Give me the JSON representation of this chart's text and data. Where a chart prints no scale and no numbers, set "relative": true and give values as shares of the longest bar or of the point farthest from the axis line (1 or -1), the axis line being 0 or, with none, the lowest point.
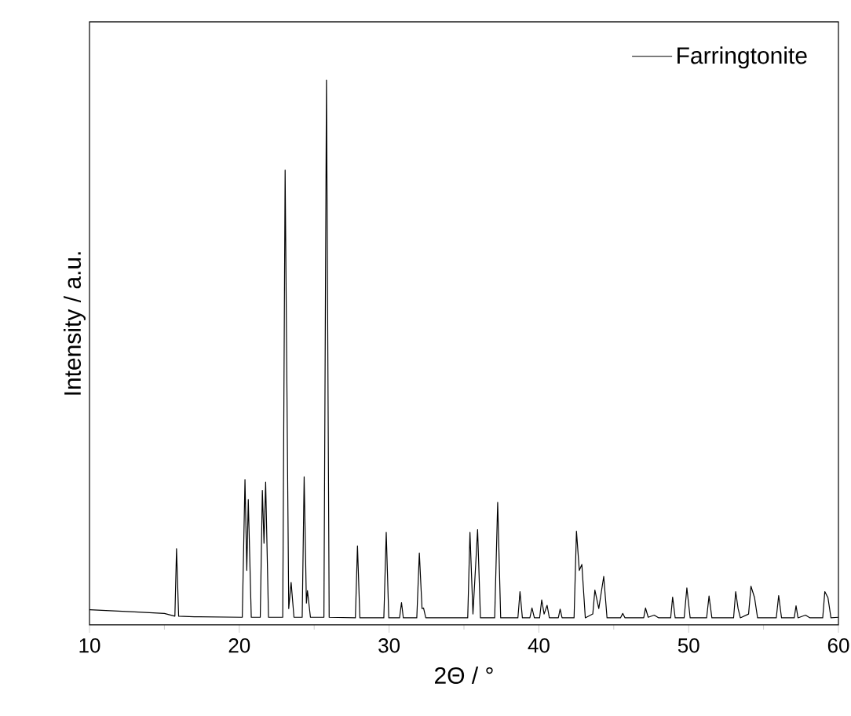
{
  "chart_data": {
    "type": "line",
    "xlabel": "2Θ / °",
    "ylabel": "Intensity / a.u.",
    "relative": true,
    "legend": "top right",
    "xlim": [
      10,
      60
    ],
    "xticks": [
      10,
      {
        "value": 15,
        "label": null
      },
      20,
      {
        "value": 25,
        "label": null
      },
      30,
      {
        "value": 35,
        "label": null
      },
      40,
      {
        "value": 45,
        "label": null
      },
      50,
      {
        "value": 55,
        "label": null
      },
      60
    ],
    "series": [
      {
        "name": "Farringtonite",
        "color": "#000000",
        "x": [
          10,
          13,
          15,
          15.7,
          15.81,
          15.95,
          17,
          20.2,
          20.38,
          20.5,
          20.6,
          20.8,
          21.4,
          21.54,
          21.65,
          21.76,
          21.95,
          22.9,
          23.06,
          23.3,
          23.46,
          23.65,
          24.2,
          24.33,
          24.48,
          24.55,
          24.75,
          25.65,
          25.82,
          26.0,
          27.75,
          27.89,
          28.05,
          29.65,
          29.81,
          29.98,
          30.7,
          30.83,
          30.95,
          31.85,
          32.02,
          32.2,
          32.3,
          32.45,
          35.25,
          35.4,
          35.6,
          35.91,
          36.1,
          37.05,
          37.25,
          37.45,
          38.6,
          38.74,
          38.9,
          39.4,
          39.54,
          39.7,
          40.05,
          40.19,
          40.35,
          40.55,
          40.7,
          41.3,
          41.42,
          41.55,
          42.35,
          42.51,
          42.7,
          42.87,
          43.1,
          43.6,
          43.74,
          44.0,
          44.33,
          44.55,
          45.45,
          45.6,
          45.75,
          47.0,
          47.12,
          47.3,
          47.7,
          48.0,
          48.8,
          48.93,
          49.1,
          49.7,
          49.88,
          50.1,
          51.2,
          51.36,
          51.55,
          53.0,
          53.14,
          53.3,
          53.45,
          54.0,
          54.16,
          54.4,
          54.6,
          55.85,
          56.01,
          56.2,
          57.05,
          57.17,
          57.3,
          57.8,
          58.1,
          58.95,
          59.09,
          59.3,
          59.5,
          60
        ],
        "values": [
          0.028,
          0.024,
          0.021,
          0.016,
          0.14,
          0.016,
          0.015,
          0.014,
          0.267,
          0.1,
          0.23,
          0.014,
          0.014,
          0.247,
          0.15,
          0.262,
          0.014,
          0.014,
          0.835,
          0.03,
          0.078,
          0.014,
          0.014,
          0.272,
          0.04,
          0.063,
          0.014,
          0.014,
          1.0,
          0.014,
          0.013,
          0.145,
          0.013,
          0.013,
          0.17,
          0.013,
          0.013,
          0.041,
          0.013,
          0.013,
          0.132,
          0.03,
          0.031,
          0.013,
          0.013,
          0.17,
          0.02,
          0.175,
          0.013,
          0.013,
          0.225,
          0.013,
          0.013,
          0.061,
          0.013,
          0.013,
          0.031,
          0.013,
          0.013,
          0.046,
          0.02,
          0.036,
          0.013,
          0.013,
          0.029,
          0.013,
          0.013,
          0.172,
          0.1,
          0.111,
          0.013,
          0.02,
          0.064,
          0.03,
          0.089,
          0.013,
          0.013,
          0.021,
          0.013,
          0.013,
          0.031,
          0.014,
          0.018,
          0.013,
          0.013,
          0.051,
          0.013,
          0.013,
          0.068,
          0.013,
          0.013,
          0.053,
          0.013,
          0.013,
          0.061,
          0.03,
          0.013,
          0.02,
          0.071,
          0.05,
          0.013,
          0.013,
          0.054,
          0.013,
          0.013,
          0.035,
          0.013,
          0.018,
          0.013,
          0.013,
          0.061,
          0.05,
          0.013,
          0.014
        ]
      }
    ]
  }
}
